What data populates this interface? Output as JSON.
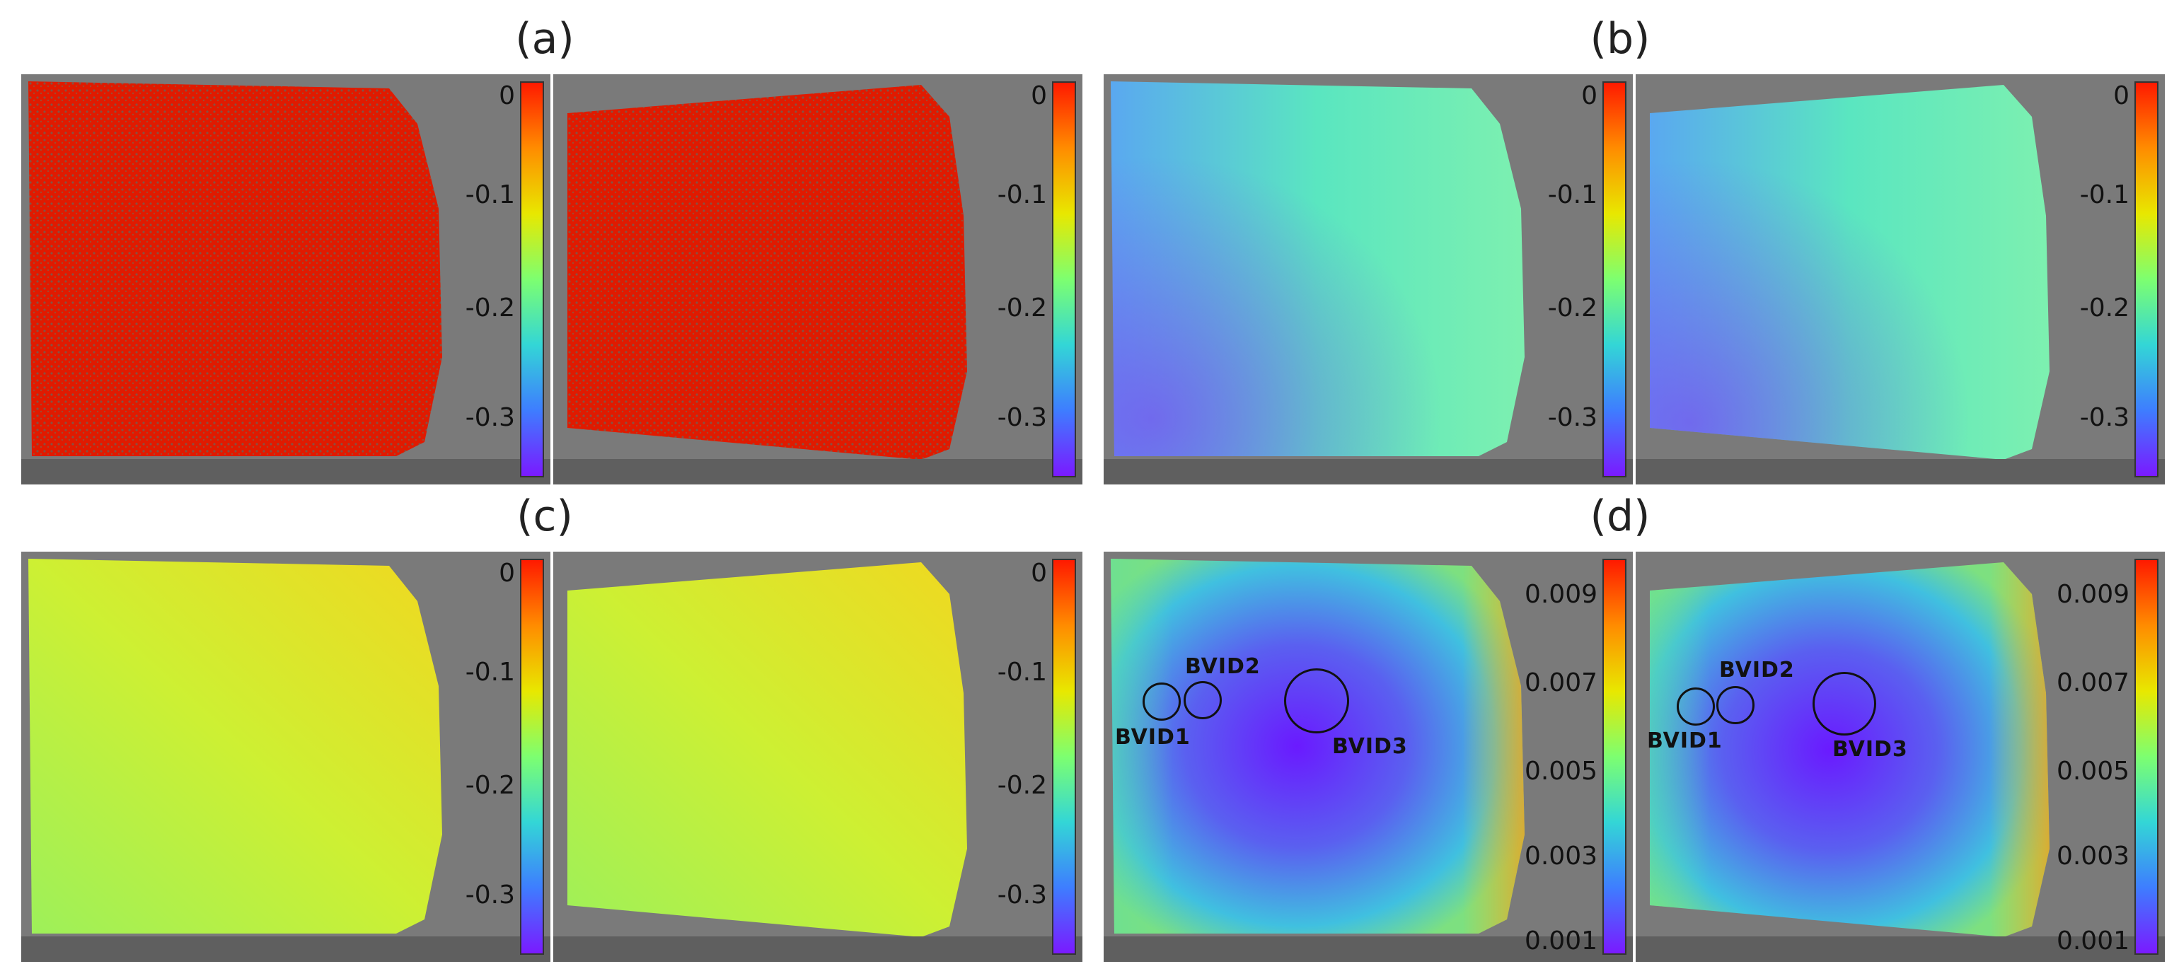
{
  "panels": {
    "a": {
      "label": "(a)",
      "ticks": [
        "0",
        "-0.1",
        "-0.2",
        "-0.3"
      ]
    },
    "b": {
      "label": "(b)",
      "ticks": [
        "0",
        "-0.1",
        "-0.2",
        "-0.3"
      ]
    },
    "c": {
      "label": "(c)",
      "ticks": [
        "0",
        "-0.1",
        "-0.2",
        "-0.3"
      ]
    },
    "d": {
      "label": "(d)",
      "ticks": [
        "0.009",
        "0.007",
        "0.005",
        "0.003",
        "0.001"
      ]
    }
  },
  "annotations": {
    "left": {
      "bvid1": "BVID1",
      "bvid2": "BVID2",
      "bvid3": "BVID3"
    },
    "right": {
      "bvid1": "BVID1",
      "bvid2": "BVID2",
      "bvid3": "BVID3"
    }
  },
  "colors": {
    "background": "#7a7a7a",
    "floor": "#5f5f5f",
    "colormap": [
      "#ff1a00",
      "#ff8c00",
      "#e8e800",
      "#7dff70",
      "#33d6d6",
      "#3e7dff",
      "#7a1aff"
    ]
  }
}
